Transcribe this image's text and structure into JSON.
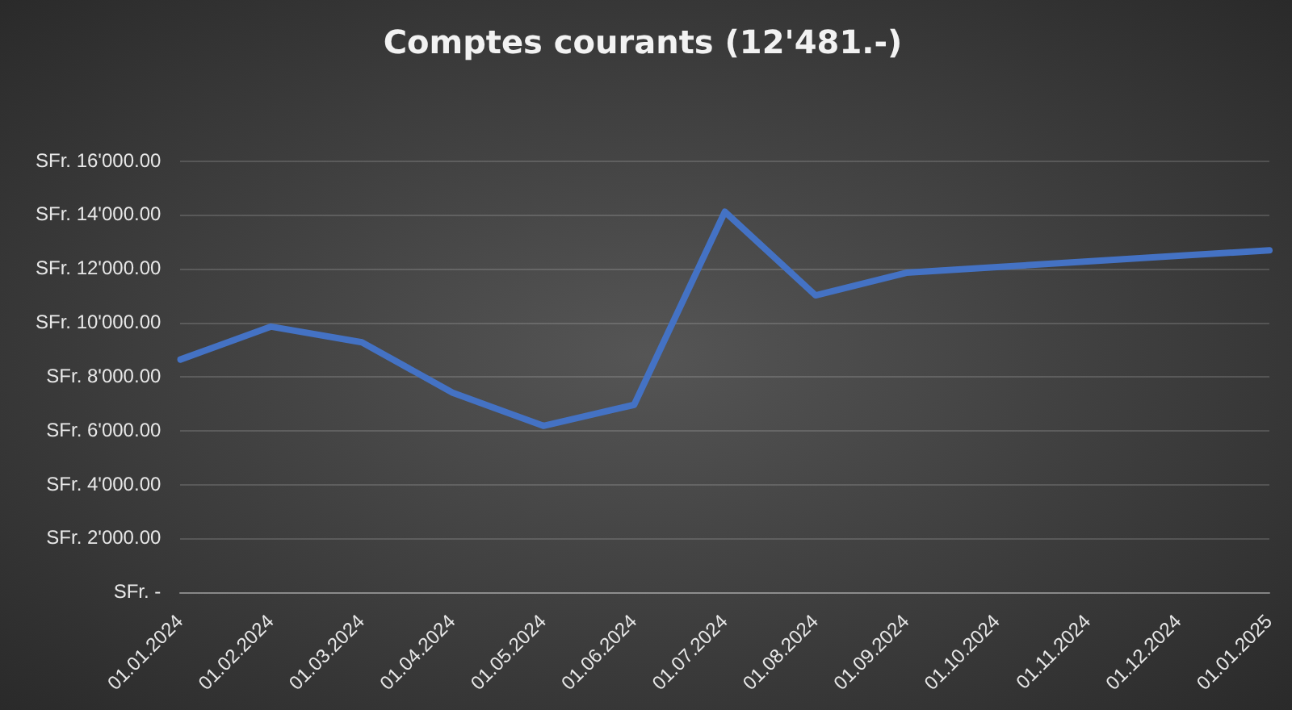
{
  "chart_data": {
    "type": "line",
    "title": "Comptes courants (12'481.-)",
    "categories": [
      "01.01.2024",
      "01.02.2024",
      "01.03.2024",
      "01.04.2024",
      "01.05.2024",
      "01.06.2024",
      "01.07.2024",
      "01.08.2024",
      "01.09.2024",
      "01.10.2024",
      "01.11.2024",
      "01.12.2024",
      "01.01.2025"
    ],
    "series": [
      {
        "color": "#4472c4",
        "values": [
          8650,
          9870,
          9290,
          7420,
          6190,
          6970,
          14130,
          11030,
          11870,
          12080,
          12290,
          12500,
          12700
        ]
      }
    ],
    "ylim": [
      0,
      16000
    ],
    "yticks": [
      {
        "value": 0,
        "label": "SFr. -"
      },
      {
        "value": 2000,
        "label": "SFr. 2'000.00"
      },
      {
        "value": 4000,
        "label": "SFr. 4'000.00"
      },
      {
        "value": 6000,
        "label": "SFr. 6'000.00"
      },
      {
        "value": 8000,
        "label": "SFr. 8'000.00"
      },
      {
        "value": 10000,
        "label": "SFr. 10'000.00"
      },
      {
        "value": 12000,
        "label": "SFr. 12'000.00"
      },
      {
        "value": 14000,
        "label": "SFr. 14'000.00"
      },
      {
        "value": 16000,
        "label": "SFr. 16'000.00"
      }
    ],
    "grid": "y",
    "legend": false,
    "marker": "none",
    "line_style": "solid"
  }
}
